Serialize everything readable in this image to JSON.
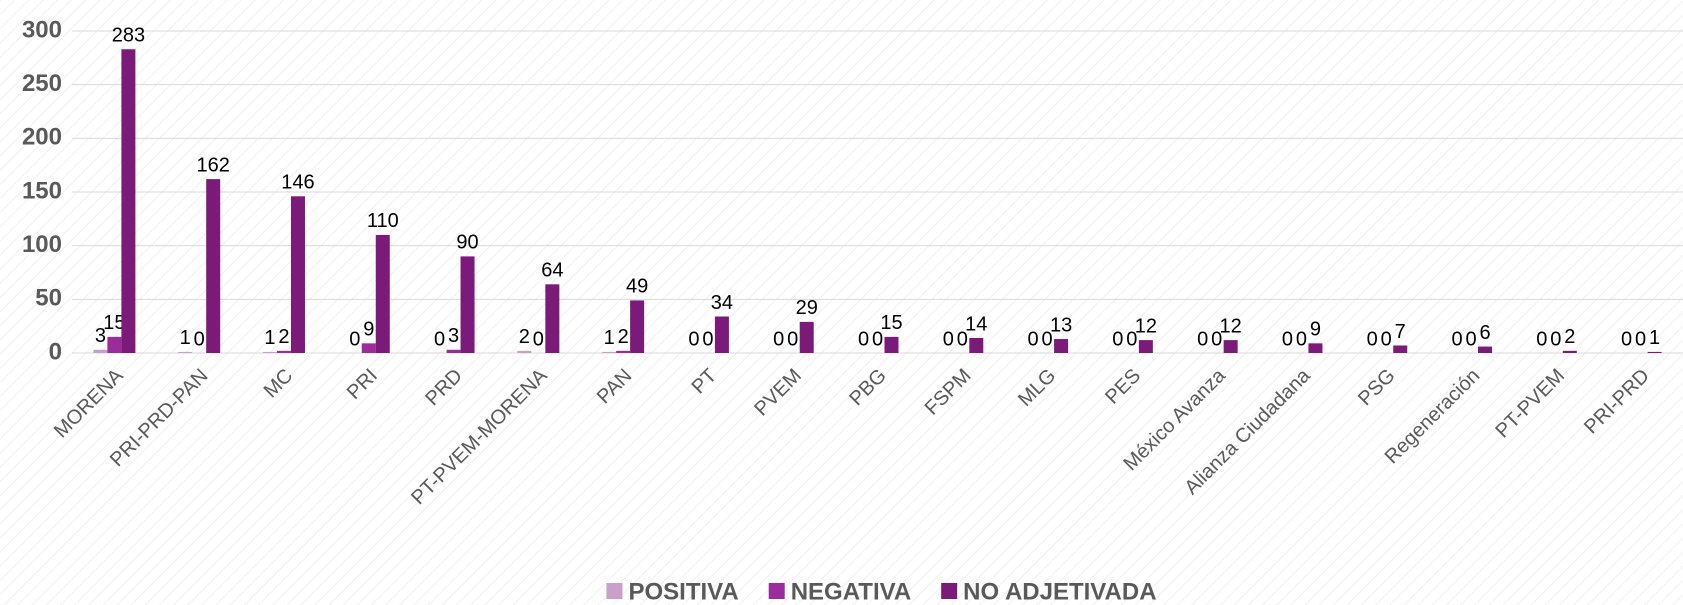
{
  "chart_data": {
    "type": "bar",
    "categories": [
      "MORENA",
      "PRI-PRD-PAN",
      "MC",
      "PRI",
      "PRD",
      "PT-PVEM-MORENA",
      "PAN",
      "PT",
      "PVEM",
      "PBG",
      "FSPM",
      "MLG",
      "PES",
      "México Avanza",
      "Alianza Ciudadana",
      "PSG",
      "Regeneración",
      "PT-PVEM",
      "PRI-PRD"
    ],
    "series": [
      {
        "name": "POSITIVA",
        "color": "#c9a0c9",
        "values": [
          3,
          1,
          1,
          0,
          0,
          2,
          1,
          0,
          0,
          0,
          0,
          0,
          0,
          0,
          0,
          0,
          0,
          0,
          0
        ]
      },
      {
        "name": "NEGATIVA",
        "color": "#9c2c9c",
        "values": [
          15,
          0,
          2,
          9,
          3,
          0,
          2,
          0,
          0,
          0,
          0,
          0,
          0,
          0,
          0,
          0,
          0,
          0,
          0
        ]
      },
      {
        "name": "NO ADJETIVADA",
        "color": "#7b1a79",
        "values": [
          283,
          162,
          146,
          110,
          90,
          64,
          49,
          34,
          29,
          15,
          14,
          13,
          12,
          12,
          9,
          7,
          6,
          2,
          1
        ]
      }
    ],
    "ylim": [
      0,
      300
    ],
    "yticks": [
      0,
      50,
      100,
      150,
      200,
      250,
      300
    ],
    "grid": true,
    "legend": "bottom"
  }
}
